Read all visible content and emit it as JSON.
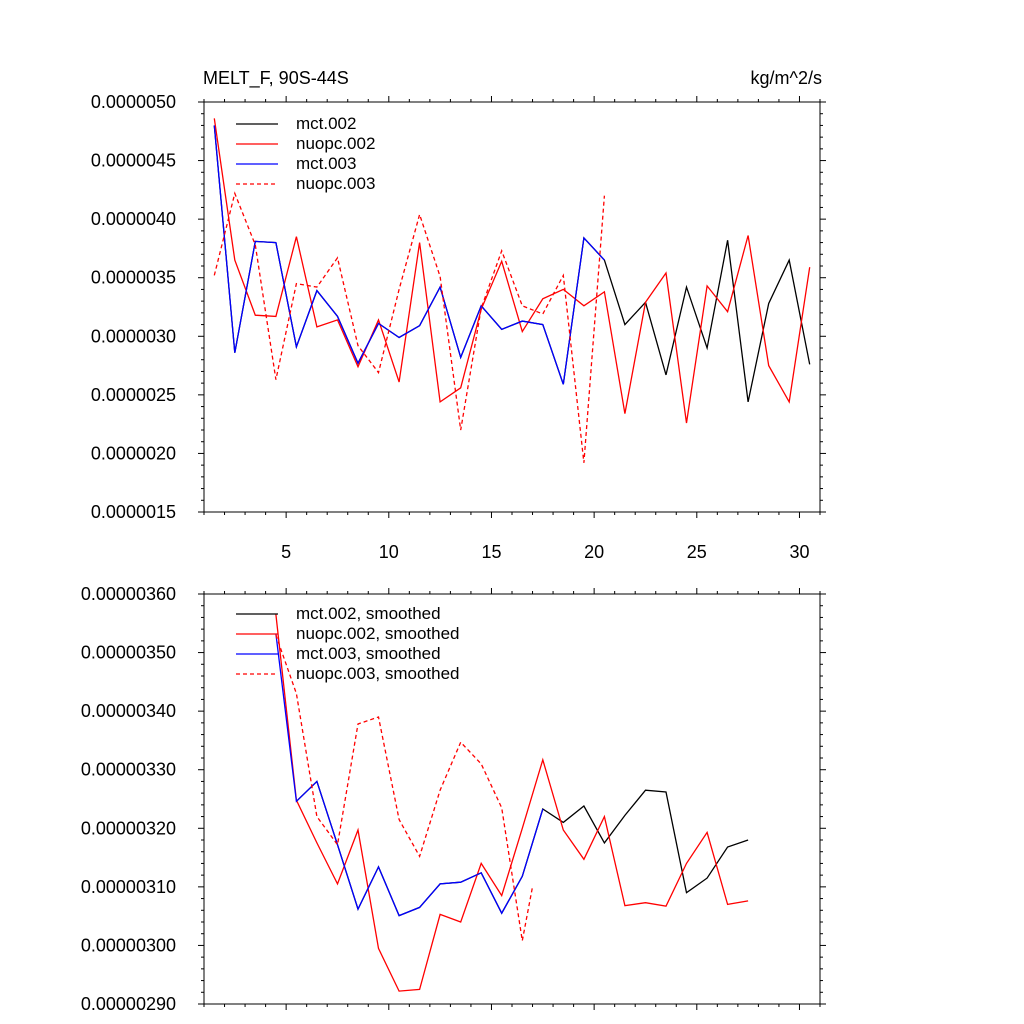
{
  "chart_data": [
    {
      "type": "line",
      "title_left": "MELT_F, 90S-44S",
      "title_right": "kg/m^2/s",
      "xlabel": "",
      "ylabel": "",
      "xlim": [
        1,
        31
      ],
      "ylim": [
        1.5e-06,
        5e-06
      ],
      "yticks": [
        1.5e-06,
        2e-06,
        2.5e-06,
        3e-06,
        3.5e-06,
        4e-06,
        4.5e-06,
        5e-06
      ],
      "ytick_labels": [
        "0.0000015",
        "0.0000020",
        "0.0000025",
        "0.0000030",
        "0.0000035",
        "0.0000040",
        "0.0000045",
        "0.0000050"
      ],
      "xticks": [
        5,
        10,
        15,
        20,
        25,
        30
      ],
      "xtick_labels": [
        "5",
        "10",
        "15",
        "20",
        "25",
        "30"
      ],
      "legend_position": "top-left",
      "series": [
        {
          "name": "mct.002",
          "color": "#000000",
          "dash": "solid",
          "x": [
            1.5,
            2.5,
            3.5,
            4.5,
            5.5,
            6.5,
            7.5,
            8.5,
            9.5,
            10.5,
            11.5,
            12.5,
            13.5,
            14.5,
            15.5,
            16.5,
            17.5,
            18.5,
            19.5,
            20.5,
            21.5,
            22.5,
            23.5,
            24.5,
            25.5,
            26.5,
            27.5,
            28.5,
            29.5,
            30.5
          ],
          "y": [
            4.8e-06,
            2.86e-06,
            3.81e-06,
            3.8e-06,
            2.91e-06,
            3.39e-06,
            3.17e-06,
            2.77e-06,
            3.11e-06,
            2.99e-06,
            3.09e-06,
            3.42e-06,
            2.82e-06,
            3.26e-06,
            3.06e-06,
            3.13e-06,
            3.1e-06,
            2.59e-06,
            3.84e-06,
            3.65e-06,
            3.1e-06,
            3.29e-06,
            2.67e-06,
            3.42e-06,
            2.9e-06,
            3.82e-06,
            2.44e-06,
            3.28e-06,
            3.65e-06,
            2.76e-06
          ]
        },
        {
          "name": "nuopc.002",
          "color": "#ff0000",
          "dash": "solid",
          "x": [
            1.5,
            2.5,
            3.5,
            4.5,
            5.5,
            6.5,
            7.5,
            8.5,
            9.5,
            10.5,
            11.5,
            12.5,
            13.5,
            14.5,
            15.5,
            16.5,
            17.5,
            18.5,
            19.5,
            20.5,
            21.5,
            22.5,
            23.5,
            24.5,
            25.5,
            26.5,
            27.5,
            28.5,
            29.5,
            30.5
          ],
          "y": [
            4.86e-06,
            3.65e-06,
            3.18e-06,
            3.17e-06,
            3.85e-06,
            3.08e-06,
            3.14e-06,
            2.74e-06,
            3.14e-06,
            2.61e-06,
            3.8e-06,
            2.44e-06,
            2.56e-06,
            3.23e-06,
            3.64e-06,
            3.04e-06,
            3.32e-06,
            3.4e-06,
            3.26e-06,
            3.38e-06,
            2.34e-06,
            3.29e-06,
            3.54e-06,
            2.26e-06,
            3.43e-06,
            3.21e-06,
            3.86e-06,
            2.75e-06,
            2.44e-06,
            3.59e-06
          ]
        },
        {
          "name": "mct.003",
          "color": "#0000ff",
          "dash": "solid",
          "x": [
            1.5,
            2.5,
            3.5,
            4.5,
            5.5,
            6.5,
            7.5,
            8.5,
            9.5,
            10.5,
            11.5,
            12.5,
            13.5,
            14.5,
            15.5,
            16.5,
            17.5,
            18.5,
            19.5,
            20.5
          ],
          "y": [
            4.8e-06,
            2.86e-06,
            3.81e-06,
            3.8e-06,
            2.91e-06,
            3.39e-06,
            3.17e-06,
            2.77e-06,
            3.11e-06,
            2.99e-06,
            3.09e-06,
            3.42e-06,
            2.82e-06,
            3.26e-06,
            3.06e-06,
            3.13e-06,
            3.1e-06,
            2.59e-06,
            3.84e-06,
            3.65e-06
          ]
        },
        {
          "name": "nuopc.003",
          "color": "#ff0000",
          "dash": "dashed",
          "x": [
            1.5,
            2.5,
            3.5,
            4.5,
            5.5,
            6.5,
            7.5,
            8.5,
            9.5,
            10.5,
            11.5,
            12.5,
            13.5,
            14.5,
            15.5,
            16.5,
            17.5,
            18.5,
            19.5,
            20.5
          ],
          "y": [
            3.52e-06,
            4.22e-06,
            3.78e-06,
            2.63e-06,
            3.45e-06,
            3.42e-06,
            3.67e-06,
            2.92e-06,
            2.69e-06,
            3.4e-06,
            4.04e-06,
            3.51e-06,
            2.2e-06,
            3.24e-06,
            3.73e-06,
            3.26e-06,
            3.19e-06,
            3.52e-06,
            1.92e-06,
            4.2e-06
          ]
        }
      ]
    },
    {
      "type": "line",
      "title_left": "",
      "title_right": "",
      "xlabel": "",
      "ylabel": "",
      "xlim": [
        1,
        31
      ],
      "ylim": [
        2.9e-06,
        3.6e-06
      ],
      "yticks": [
        2.9e-06,
        3e-06,
        3.1e-06,
        3.2e-06,
        3.3e-06,
        3.4e-06,
        3.5e-06,
        3.6e-06
      ],
      "ytick_labels": [
        "0.00000290",
        "0.00000300",
        "0.00000310",
        "0.00000320",
        "0.00000330",
        "0.00000340",
        "0.00000350",
        "0.00000360"
      ],
      "xticks": [
        5,
        10,
        15,
        20,
        25,
        30
      ],
      "xtick_labels": [],
      "legend_position": "top-left",
      "series": [
        {
          "name": "mct.002, smoothed",
          "color": "#000000",
          "dash": "solid",
          "x": [
            5.5,
            6.5,
            7.5,
            8.5,
            9.5,
            10.5,
            11.5,
            12.5,
            13.5,
            14.5,
            15.5,
            16.5,
            17.5,
            18.5,
            19.5,
            20.5,
            21.5,
            22.5,
            23.5,
            24.5,
            25.5,
            26.5,
            27.5
          ],
          "y": [
            3.246e-06,
            3.28e-06,
            3.172e-06,
            3.062e-06,
            3.134e-06,
            3.051e-06,
            3.065e-06,
            3.105e-06,
            3.108e-06,
            3.124e-06,
            3.055e-06,
            3.118e-06,
            3.233e-06,
            3.21e-06,
            3.238e-06,
            3.175e-06,
            3.222e-06,
            3.265e-06,
            3.262e-06,
            3.09e-06,
            3.115e-06,
            3.168e-06,
            3.18e-06
          ]
        },
        {
          "name": "nuopc.002, smoothed",
          "color": "#ff0000",
          "dash": "solid",
          "x": [
            4.5,
            5.5,
            6.5,
            7.5,
            8.5,
            9.5,
            10.5,
            11.5,
            12.5,
            13.5,
            14.5,
            15.5,
            16.5,
            17.5,
            18.5,
            19.5,
            20.5,
            21.5,
            22.5,
            23.5,
            24.5,
            25.5,
            26.5,
            27.5
          ],
          "y": [
            3.565e-06,
            3.248e-06,
            3.175e-06,
            3.105e-06,
            3.197e-06,
            2.995e-06,
            2.922e-06,
            2.925e-06,
            3.053e-06,
            3.04e-06,
            3.14e-06,
            3.085e-06,
            3.2e-06,
            3.317e-06,
            3.197e-06,
            3.147e-06,
            3.22e-06,
            3.068e-06,
            3.073e-06,
            3.067e-06,
            3.14e-06,
            3.193e-06,
            3.07e-06,
            3.076e-06
          ]
        },
        {
          "name": "mct.003, smoothed",
          "color": "#0000ff",
          "dash": "solid",
          "x": [
            4.5,
            5.5,
            6.5,
            7.5,
            8.5,
            9.5,
            10.5,
            11.5,
            12.5,
            13.5,
            14.5,
            15.5,
            16.5,
            17.5
          ],
          "y": [
            3.532e-06,
            3.246e-06,
            3.28e-06,
            3.172e-06,
            3.062e-06,
            3.134e-06,
            3.051e-06,
            3.065e-06,
            3.105e-06,
            3.108e-06,
            3.124e-06,
            3.055e-06,
            3.118e-06,
            3.233e-06
          ]
        },
        {
          "name": "nuopc.003, smoothed",
          "color": "#ff0000",
          "dash": "dashed",
          "x": [
            4.5,
            5.5,
            6.5,
            7.5,
            8.5,
            9.5,
            10.5,
            11.5,
            12.5,
            13.5,
            14.5,
            15.5,
            16.5,
            17.0
          ],
          "y": [
            3.53e-06,
            3.43e-06,
            3.22e-06,
            3.172e-06,
            3.378e-06,
            3.39e-06,
            3.215e-06,
            3.152e-06,
            3.265e-06,
            3.347e-06,
            3.31e-06,
            3.235e-06,
            3.008e-06,
            3.1e-06
          ]
        }
      ]
    }
  ]
}
